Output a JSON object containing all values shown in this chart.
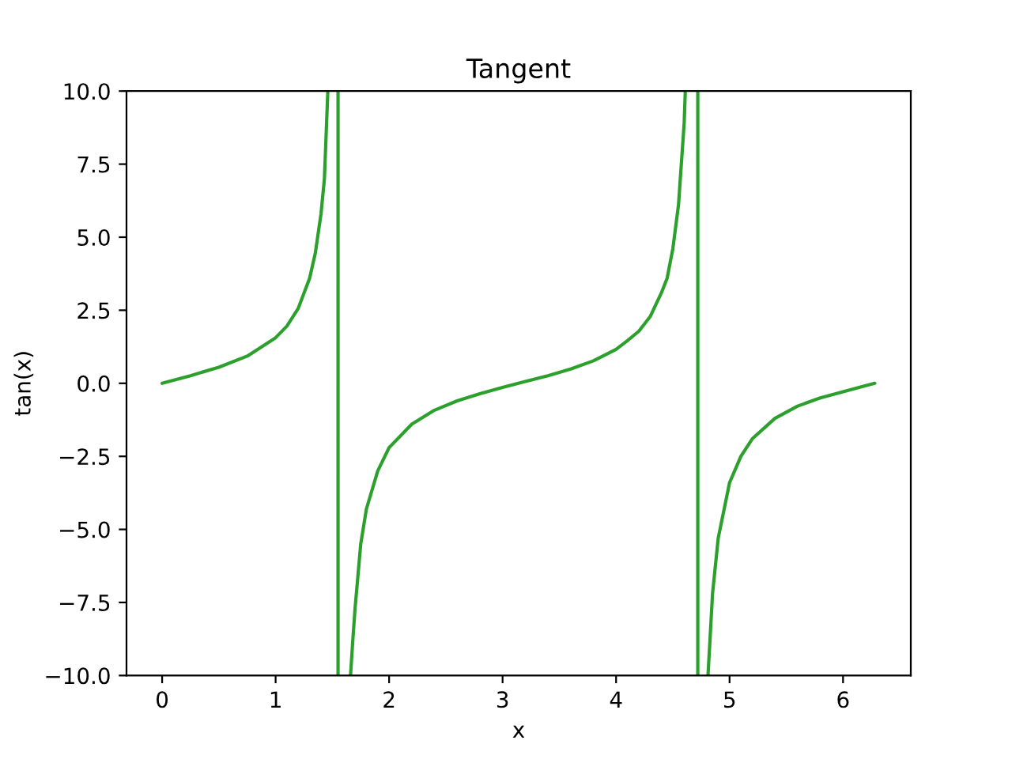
{
  "chart_data": {
    "type": "line",
    "title": "Tangent",
    "xlabel": "x",
    "ylabel": "tan(x)",
    "series": [
      {
        "color": "#2ca02c",
        "x": [
          0,
          0.25,
          0.5,
          0.75,
          1.0,
          1.1,
          1.2,
          1.3,
          1.35,
          1.4,
          1.43,
          1.46,
          1.5,
          1.55,
          1.55,
          1.6,
          1.66,
          1.68,
          1.7,
          1.75,
          1.8,
          1.9,
          2.0,
          2.2,
          2.4,
          2.6,
          2.8,
          3.0,
          3.2,
          3.4,
          3.6,
          3.8,
          4.0,
          4.1,
          4.2,
          4.3,
          4.4,
          4.45,
          4.5,
          4.55,
          4.6,
          4.61,
          4.66,
          4.72,
          4.72,
          4.76,
          4.81,
          4.85,
          4.9,
          5.0,
          5.1,
          5.2,
          5.4,
          5.6,
          5.8,
          6.0,
          6.2,
          6.28
        ],
        "values": [
          0,
          0.26,
          0.55,
          0.93,
          1.56,
          1.96,
          2.57,
          3.6,
          4.46,
          5.8,
          7.0,
          10.0,
          null,
          10.0,
          -10.0,
          null,
          -10.0,
          -8.8,
          -7.7,
          -5.5,
          -4.3,
          -3.0,
          -2.2,
          -1.4,
          -0.92,
          -0.6,
          -0.36,
          -0.14,
          0.06,
          0.26,
          0.49,
          0.77,
          1.16,
          1.46,
          1.78,
          2.28,
          3.1,
          3.6,
          4.6,
          6.1,
          8.9,
          10.0,
          null,
          10.0,
          -10.0,
          null,
          -10.0,
          -7.2,
          -5.3,
          -3.4,
          -2.5,
          -1.9,
          -1.2,
          -0.78,
          -0.5,
          -0.29,
          -0.08,
          0.0
        ]
      }
    ],
    "xlim": [
      -0.314,
      6.597
    ],
    "xticks": [
      0,
      1,
      2,
      3,
      4,
      5,
      6
    ],
    "ylim": [
      -10,
      10
    ],
    "yticks": [
      {
        "value": -10,
        "label": "−10.0"
      },
      {
        "value": -7.5,
        "label": "−7.5"
      },
      {
        "value": -5,
        "label": "−5.0"
      },
      {
        "value": -2.5,
        "label": "−2.5"
      },
      {
        "value": 0,
        "label": "0.0"
      },
      {
        "value": 2.5,
        "label": "2.5"
      },
      {
        "value": 5,
        "label": "5.0"
      },
      {
        "value": 7.5,
        "label": "7.5"
      },
      {
        "value": 10,
        "label": "10.0"
      }
    ],
    "grid": false,
    "legend": false,
    "marker": "none",
    "line_style": "solid"
  }
}
